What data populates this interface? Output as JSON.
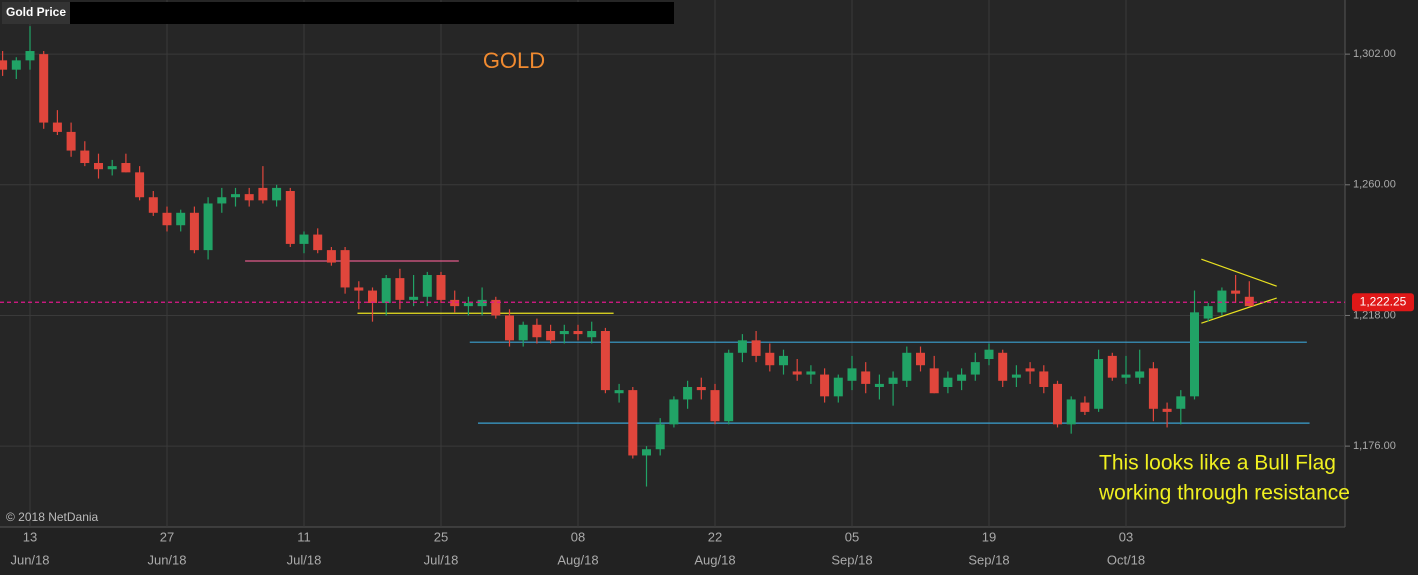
{
  "chart_data": {
    "type": "candlestick",
    "header": "Gold Price",
    "title": "GOLD",
    "copyright": "© 2018 NetDania",
    "annotation": [
      "This looks like a Bull Flag",
      "working through resistance"
    ],
    "categories": [
      null,
      null,
      [
        "13",
        "Jun/18"
      ],
      null,
      null,
      null,
      null,
      null,
      null,
      null,
      null,
      null,
      [
        "27",
        "Jun/18"
      ],
      null,
      null,
      null,
      null,
      null,
      null,
      null,
      null,
      null,
      [
        "11",
        "Jul/18"
      ],
      null,
      null,
      null,
      null,
      null,
      null,
      null,
      null,
      null,
      [
        "25",
        "Jul/18"
      ],
      null,
      null,
      null,
      null,
      null,
      null,
      null,
      null,
      null,
      [
        "08",
        "Aug/18"
      ],
      null,
      null,
      null,
      null,
      null,
      null,
      null,
      null,
      null,
      [
        "22",
        "Aug/18"
      ],
      null,
      null,
      null,
      null,
      null,
      null,
      null,
      null,
      null,
      [
        "05",
        "Sep/18"
      ],
      null,
      null,
      null,
      null,
      null,
      null,
      null,
      null,
      null,
      [
        "19",
        "Sep/18"
      ],
      null,
      null,
      null,
      null,
      null,
      null,
      null,
      null,
      null,
      [
        "03",
        "Oct/18"
      ],
      null,
      null,
      null,
      null,
      null,
      null,
      null,
      null,
      null
    ],
    "open": [
      1300,
      1297,
      1300,
      1302,
      1280,
      1277,
      1271,
      1267,
      1265,
      1267,
      1264,
      1256,
      1251,
      1247,
      1251,
      1239,
      1254,
      1256,
      1257,
      1259,
      1255,
      1258,
      1241,
      1244,
      1239,
      1239,
      1227,
      1226,
      1222,
      1230,
      1223,
      1224,
      1231,
      1223,
      1221,
      1221,
      1223,
      1218,
      1210,
      1215,
      1213,
      1212,
      1213,
      1211,
      1213,
      1193,
      1194,
      1173,
      1175,
      1183,
      1191,
      1195,
      1194,
      1184,
      1206,
      1210,
      1206,
      1202,
      1200,
      1199,
      1199,
      1192,
      1197,
      1200,
      1195,
      1196,
      1197,
      1206,
      1201,
      1195,
      1197,
      1199,
      1204,
      1206,
      1198,
      1201,
      1200,
      1196,
      1183,
      1190,
      1188,
      1205,
      1198,
      1198,
      1201,
      1188,
      1188,
      1192,
      1217,
      1219,
      1226,
      1224
    ],
    "high": [
      1303,
      1301,
      1311,
      1303,
      1284,
      1280,
      1274,
      1270,
      1268,
      1270,
      1266,
      1258,
      1253,
      1252,
      1253,
      1256,
      1259,
      1259,
      1259,
      1266,
      1260,
      1259,
      1245,
      1246,
      1240,
      1240,
      1229,
      1227,
      1231,
      1233,
      1231,
      1232,
      1232,
      1226,
      1224,
      1227,
      1224,
      1220,
      1216,
      1217,
      1215,
      1215,
      1215,
      1216,
      1214,
      1196,
      1195,
      1176,
      1185,
      1192,
      1197,
      1198,
      1196,
      1207,
      1212,
      1213,
      1209,
      1207,
      1204,
      1202,
      1201,
      1199,
      1205,
      1203,
      1199,
      1200,
      1208,
      1208,
      1205,
      1200,
      1201,
      1206,
      1209,
      1207,
      1202,
      1203,
      1202,
      1197,
      1192,
      1192,
      1207,
      1206,
      1205,
      1207,
      1203,
      1190,
      1194,
      1226,
      1222,
      1227,
      1231,
      1229
    ],
    "low": [
      1295,
      1294,
      1297,
      1278,
      1276,
      1269,
      1266,
      1262,
      1263,
      1264,
      1255,
      1250,
      1245,
      1245,
      1238,
      1236,
      1251,
      1253,
      1253,
      1254,
      1253,
      1240,
      1238,
      1238,
      1234,
      1225,
      1220,
      1216,
      1218,
      1220,
      1221,
      1221,
      1222,
      1219,
      1218,
      1218,
      1217,
      1208,
      1208,
      1209,
      1209,
      1209,
      1210,
      1209,
      1193,
      1190,
      1172,
      1163,
      1173,
      1182,
      1188,
      1191,
      1183,
      1183,
      1203,
      1203,
      1200,
      1199,
      1197,
      1196,
      1190,
      1190,
      1194,
      1193,
      1191,
      1189,
      1195,
      1200,
      1193,
      1193,
      1194,
      1197,
      1202,
      1195,
      1195,
      1196,
      1193,
      1182,
      1180,
      1186,
      1187,
      1197,
      1196,
      1196,
      1184,
      1182,
      1183,
      1191,
      1216,
      1218,
      1222,
      1221
    ],
    "close": [
      1297,
      1300,
      1303,
      1280,
      1277,
      1271,
      1267,
      1265,
      1266,
      1264,
      1256,
      1251,
      1247,
      1251,
      1239,
      1254,
      1256,
      1257,
      1255,
      1255,
      1259,
      1241,
      1244,
      1239,
      1235,
      1227,
      1226,
      1222,
      1230,
      1223,
      1224,
      1231,
      1223,
      1221,
      1222,
      1223,
      1218,
      1210,
      1215,
      1211,
      1210,
      1213,
      1212,
      1213,
      1194,
      1194,
      1173,
      1175,
      1183,
      1191,
      1195,
      1194,
      1184,
      1206,
      1210,
      1205,
      1202,
      1205,
      1199,
      1200,
      1192,
      1198,
      1201,
      1196,
      1196,
      1198,
      1206,
      1202,
      1193,
      1198,
      1199,
      1203,
      1207,
      1197,
      1199,
      1200,
      1195,
      1183,
      1191,
      1187,
      1204,
      1198,
      1199,
      1200,
      1188,
      1187,
      1192,
      1219,
      1221,
      1226,
      1225,
      1221
    ],
    "up_color": "#21a366",
    "down_color": "#e0463c",
    "ylim": [
      1150,
      1319.4
    ],
    "yticks": [
      {
        "value": 1302,
        "label": "1,302.00"
      },
      {
        "value": 1260,
        "label": "1,260.00"
      },
      {
        "value": 1218,
        "label": "1,218.00"
      },
      {
        "value": 1176,
        "label": "1,176.00"
      }
    ],
    "grid": true,
    "current_price": {
      "value": 1222.25,
      "label": "1,222.25",
      "color": "#e0188a"
    },
    "hlines": [
      {
        "value": 1235.5,
        "from": 17.7,
        "to": 33.3,
        "color": "#e05a8a"
      },
      {
        "value": 1218.7,
        "from": 25.9,
        "to": 44.6,
        "color": "#e8e020"
      },
      {
        "value": 1209.4,
        "from": 34.1,
        "to": 95.2,
        "color": "#3aa0d0"
      },
      {
        "value": 1183.4,
        "from": 34.7,
        "to": 95.4,
        "color": "#3aa0d0"
      }
    ],
    "trendlines": [
      {
        "from": [
          87.5,
          1236.1
        ],
        "to": [
          93.0,
          1227.4
        ],
        "color": "#e8e020"
      },
      {
        "from": [
          87.5,
          1215.5
        ],
        "to": [
          93.0,
          1223.6
        ],
        "color": "#e8e020"
      }
    ]
  }
}
